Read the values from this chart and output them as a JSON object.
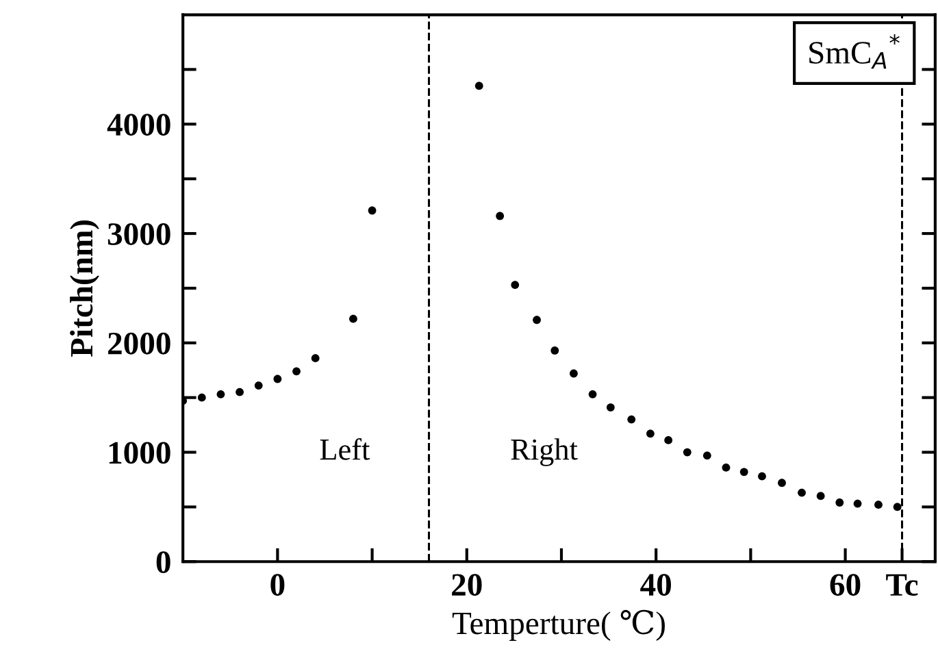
{
  "chart_data": {
    "type": "scatter",
    "xlabel": "Temperture( ℃)",
    "ylabel": "Pitch(nm)",
    "xlim": [
      -10,
      69.5
    ],
    "ylim": [
      0,
      5000
    ],
    "xticks": [
      0,
      {
        "value": 10,
        "label": null
      },
      20,
      {
        "value": 30,
        "label": null
      },
      40,
      {
        "value": 50,
        "label": null
      },
      60,
      {
        "value": 66,
        "label": "Tc"
      }
    ],
    "yticks": [
      0,
      {
        "value": 500,
        "label": null
      },
      1000,
      {
        "value": 1500,
        "label": null
      },
      2000,
      {
        "value": 2500,
        "label": null
      },
      3000,
      {
        "value": 3500,
        "label": null
      },
      4000,
      {
        "value": 4500,
        "label": null
      }
    ],
    "marker": "circle",
    "grid": false,
    "legend": false,
    "series": [
      {
        "color": "#000000",
        "x": [
          -10,
          -8,
          -6,
          -4,
          -2,
          0,
          2,
          4,
          8,
          10
        ],
        "values": [
          1470,
          1500,
          1530,
          1550,
          1610,
          1670,
          1740,
          1860,
          2220,
          3210
        ]
      },
      {
        "color": "#000000",
        "x": [
          21.3,
          23.5,
          25.1,
          27.4,
          29.3,
          31.3,
          33.3,
          35.2,
          37.4,
          39.4,
          41.3,
          43.3,
          45.4,
          47.4,
          49.3,
          51.2,
          53.3,
          55.4,
          57.4,
          59.4,
          61.3,
          63.5,
          65.5
        ],
        "values": [
          4350,
          3160,
          2530,
          2210,
          1930,
          1720,
          1530,
          1410,
          1300,
          1170,
          1110,
          1000,
          970,
          860,
          820,
          780,
          720,
          630,
          600,
          540,
          530,
          520,
          500
        ]
      }
    ],
    "ref_lines": [
      {
        "axis": "x",
        "value": 16,
        "line_style": "dashed",
        "color": "#000000"
      },
      {
        "axis": "x",
        "value": 66,
        "line_style": "dashed",
        "color": "#000000"
      }
    ],
    "annotations": [
      "Left",
      "Right",
      "SmC$_{A}$$^{*}$"
    ]
  }
}
